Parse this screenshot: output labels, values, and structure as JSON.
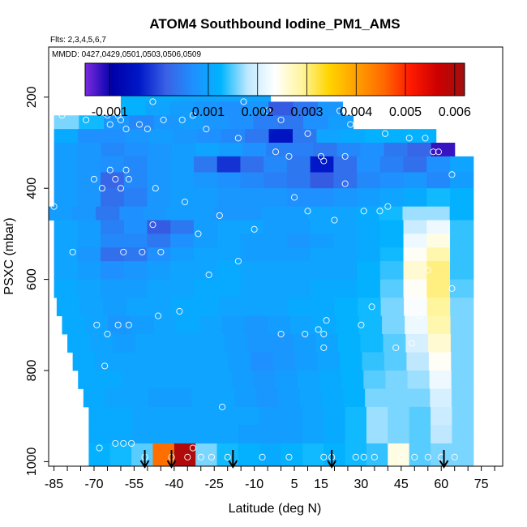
{
  "chart_data": {
    "type": "heatmap",
    "title": "ATOM4 Southbound Iodine_PM1_AMS",
    "subtitle": "Flts: 2,3,4,5,6,7",
    "legend_note": "MMDD: 0427,0429,0501,0503,0506,0509",
    "xlabel": "Latitude (deg N)",
    "ylabel": "PSXC (mbar)",
    "xlim": [
      -87,
      83
    ],
    "ylim": [
      1010,
      90
    ],
    "x_ticks": [
      -85,
      -70,
      -55,
      -40,
      -25,
      -10,
      5,
      15,
      30,
      45,
      60,
      75
    ],
    "y_ticks": [
      200,
      400,
      600,
      800,
      1000
    ],
    "colorbar": {
      "range": [
        -0.0015,
        0.0062
      ],
      "tick_values": [
        -0.001,
        0.001,
        0.002,
        0.003,
        0.004,
        0.005,
        0.006
      ],
      "tick_labels": [
        "-0.001",
        "0.001",
        "0.002",
        "0.003",
        "0.004",
        "0.005",
        "0.006"
      ],
      "colors": [
        "#7b2be0",
        "#0000a8",
        "#0018c8",
        "#3a62e6",
        "#1e90ff",
        "#00b4ff",
        "#bfe8ff",
        "#ffffff",
        "#fff59c",
        "#ffd400",
        "#ffa000",
        "#ff6a00",
        "#ff1a00",
        "#cc0000",
        "#a01010"
      ]
    },
    "flight_arrows_lat": [
      -51,
      -41,
      -18,
      19,
      61
    ],
    "strips": [
      {
        "pmin": 170,
        "pmax": 210,
        "lat0": -60,
        "lat1": -4,
        "vals": [
          0.0012,
          0.0011,
          0.001,
          0.001,
          0.001
        ]
      },
      {
        "pmin": 210,
        "pmax": 240,
        "lat0": -60,
        "lat1": 23,
        "vals": [
          0.0012,
          0.001,
          0.0009,
          0.0008,
          0.0007,
          0.0008,
          0.0001,
          0.0004,
          0.0008
        ]
      },
      {
        "pmin": 240,
        "pmax": 270,
        "lat0": -85,
        "lat1": 27,
        "vals": [
          0.0016,
          0.0013,
          0.0008,
          0.0006,
          0.0008,
          0.0009,
          0.0008,
          0.0007,
          0.0005,
          0.0004,
          0.0007,
          0.0009
        ]
      },
      {
        "pmin": 270,
        "pmax": 300,
        "lat0": -85,
        "lat1": 58,
        "vals": [
          0.0011,
          0.0007,
          0.0007,
          0.0008,
          0.0009,
          0.0008,
          0.0007,
          0.0006,
          0.0004,
          -0.0005,
          0.0004,
          0.001,
          0.0011,
          0.0012,
          0.0012,
          0.0012
        ]
      },
      {
        "pmin": 300,
        "pmax": 330,
        "lat0": -85,
        "lat1": 65,
        "vals": [
          0.0009,
          0.0008,
          0.0006,
          0.0007,
          0.0008,
          0.0009,
          0.001,
          0.0009,
          0.0007,
          0.0005,
          0.0005,
          0.0004,
          0.0006,
          0.0007,
          0.0004,
          0.0002,
          -0.0012
        ]
      },
      {
        "pmin": 330,
        "pmax": 365,
        "lat0": -85,
        "lat1": 72,
        "vals": [
          0.0009,
          0.0008,
          0.0007,
          0.0006,
          0.0008,
          0.0009,
          0.0004,
          -0.0002,
          0.0003,
          0.0006,
          0.0004,
          -0.0004,
          0.0003,
          0.0007,
          0.0005,
          0.0003,
          0.0007,
          0.001
        ]
      },
      {
        "pmin": 365,
        "pmax": 400,
        "lat0": -85,
        "lat1": 72,
        "vals": [
          0.0009,
          0.0008,
          0.0002,
          0.0006,
          0.0008,
          0.0009,
          0.0008,
          0.0007,
          0.0006,
          0.0005,
          0.0004,
          0.0001,
          0.0003,
          0.0006,
          0.0007,
          0.0008,
          0.0006,
          0.0009
        ]
      },
      {
        "pmin": 400,
        "pmax": 440,
        "lat0": -85,
        "lat1": 72,
        "vals": [
          0.0009,
          0.0008,
          0.0003,
          0.0005,
          0.0008,
          0.0009,
          0.0009,
          0.0008,
          0.0008,
          0.0008,
          0.0007,
          0.0007,
          0.0008,
          0.0009,
          0.001,
          0.0011,
          0.0013,
          0.0012
        ]
      },
      {
        "pmin": 440,
        "pmax": 470,
        "lat0": -87,
        "lat1": 72,
        "vals": [
          0.0009,
          0.0008,
          0.0004,
          0.0007,
          0.0008,
          0.0009,
          0.0009,
          0.0008,
          0.0008,
          0.0009,
          0.0009,
          0.001,
          0.001,
          0.0011,
          0.0013,
          0.0017,
          0.0017,
          0.0012
        ]
      },
      {
        "pmin": 470,
        "pmax": 500,
        "lat0": -85,
        "lat1": 72,
        "vals": [
          0.001,
          0.0009,
          0.0005,
          0.0007,
          0.0001,
          0.0004,
          0.0009,
          0.001,
          0.001,
          0.0009,
          0.0009,
          0.001,
          0.001,
          0.0011,
          0.0012,
          0.0019,
          0.0022,
          0.0014
        ]
      },
      {
        "pmin": 500,
        "pmax": 530,
        "lat0": -85,
        "lat1": 72,
        "vals": [
          0.001,
          0.0009,
          0.0006,
          0.0006,
          0.0004,
          0.0007,
          0.0009,
          0.001,
          0.0009,
          0.0009,
          0.0008,
          0.0009,
          0.001,
          0.0011,
          0.0012,
          0.0022,
          0.0025,
          0.0014
        ]
      },
      {
        "pmin": 530,
        "pmax": 560,
        "lat0": -85,
        "lat1": 72,
        "vals": [
          0.001,
          0.0008,
          0.0003,
          0.0004,
          0.0007,
          0.0009,
          0.001,
          0.001,
          0.0009,
          0.0009,
          0.0009,
          0.001,
          0.001,
          0.0011,
          0.0013,
          0.0024,
          0.0028,
          0.0014
        ]
      },
      {
        "pmin": 560,
        "pmax": 600,
        "lat0": -85,
        "lat1": 72,
        "vals": [
          0.001,
          0.0009,
          0.0007,
          0.0008,
          0.0009,
          0.001,
          0.001,
          0.0011,
          0.001,
          0.001,
          0.001,
          0.001,
          0.001,
          0.0012,
          0.0014,
          0.0026,
          0.003,
          0.0014
        ]
      },
      {
        "pmin": 600,
        "pmax": 640,
        "lat0": -85,
        "lat1": 72,
        "vals": [
          0.0011,
          0.001,
          0.0009,
          0.0009,
          0.001,
          0.001,
          0.0011,
          0.0011,
          0.001,
          0.001,
          0.001,
          0.0011,
          0.0011,
          0.0012,
          0.0015,
          0.0024,
          0.003,
          0.0015
        ]
      },
      {
        "pmin": 640,
        "pmax": 680,
        "lat0": -84,
        "lat1": 72,
        "vals": [
          0.0011,
          0.001,
          0.0009,
          0.001,
          0.001,
          0.0011,
          0.0011,
          0.001,
          0.001,
          0.001,
          0.0011,
          0.0011,
          0.0012,
          0.0013,
          0.0016,
          0.0023,
          0.0029,
          0.0016
        ]
      },
      {
        "pmin": 680,
        "pmax": 720,
        "lat0": -82,
        "lat1": 72,
        "vals": [
          0.0011,
          0.001,
          0.0008,
          0.0009,
          0.001,
          0.0011,
          0.001,
          0.0009,
          0.0008,
          0.0009,
          0.001,
          0.0011,
          0.0012,
          0.0013,
          0.0016,
          0.0022,
          0.0028,
          0.0016
        ]
      },
      {
        "pmin": 720,
        "pmax": 760,
        "lat0": -80,
        "lat1": 72,
        "vals": [
          0.0011,
          0.001,
          0.0009,
          0.001,
          0.001,
          0.001,
          0.001,
          0.0009,
          0.0008,
          0.0008,
          0.0009,
          0.001,
          0.0012,
          0.0013,
          0.0015,
          0.002,
          0.0026,
          0.0016
        ]
      },
      {
        "pmin": 760,
        "pmax": 800,
        "lat0": -78,
        "lat1": 72,
        "vals": [
          0.0011,
          0.001,
          0.001,
          0.001,
          0.001,
          0.001,
          0.001,
          0.0009,
          0.0007,
          0.0008,
          0.0009,
          0.001,
          0.0012,
          0.0014,
          0.0015,
          0.0018,
          0.0024,
          0.0016
        ]
      },
      {
        "pmin": 800,
        "pmax": 840,
        "lat0": -76,
        "lat1": 72,
        "vals": [
          0.0011,
          0.0011,
          0.001,
          0.001,
          0.001,
          0.001,
          0.001,
          0.0009,
          0.0008,
          0.0009,
          0.001,
          0.0011,
          0.0012,
          0.0015,
          0.0016,
          0.0017,
          0.0022,
          0.0016
        ]
      },
      {
        "pmin": 840,
        "pmax": 880,
        "lat0": -74,
        "lat1": 72,
        "vals": [
          0.0011,
          0.001,
          0.001,
          0.0009,
          0.0009,
          0.001,
          0.001,
          0.0009,
          0.0008,
          0.0009,
          0.001,
          0.0011,
          0.0012,
          0.0016,
          0.0016,
          0.0016,
          0.002,
          0.0016
        ]
      },
      {
        "pmin": 880,
        "pmax": 920,
        "lat0": -72,
        "lat1": 72,
        "vals": [
          0.0011,
          0.0011,
          0.001,
          0.001,
          0.001,
          0.001,
          0.001,
          0.001,
          0.0009,
          0.0009,
          0.001,
          0.0011,
          0.0013,
          0.0017,
          0.0016,
          0.0015,
          0.0019,
          0.0016
        ]
      },
      {
        "pmin": 920,
        "pmax": 960,
        "lat0": -72,
        "lat1": 72,
        "vals": [
          0.0011,
          0.0011,
          0.001,
          0.001,
          0.001,
          0.001,
          0.001,
          0.0009,
          0.0009,
          0.0009,
          0.001,
          0.0011,
          0.0013,
          0.0017,
          0.0016,
          0.0015,
          0.0018,
          0.0016
        ]
      },
      {
        "pmin": 960,
        "pmax": 1010,
        "lat0": -72,
        "lat1": 72,
        "vals": [
          0.0012,
          0.0013,
          0.0015,
          0.0045,
          0.006,
          0.0016,
          0.0013,
          0.0012,
          0.0011,
          0.0012,
          0.0013,
          0.0012,
          0.0013,
          0.0014,
          0.0025,
          0.0015,
          0.0016,
          0.0016
        ]
      }
    ],
    "points": [
      [
        -85,
        440
      ],
      [
        -82,
        240
      ],
      [
        -78,
        540
      ],
      [
        -73,
        250
      ],
      [
        -70,
        380
      ],
      [
        -69,
        700
      ],
      [
        -68,
        970
      ],
      [
        -67,
        400
      ],
      [
        -66,
        230
      ],
      [
        -66,
        790
      ],
      [
        -65,
        240
      ],
      [
        -65,
        720
      ],
      [
        -64,
        360
      ],
      [
        -64,
        260
      ],
      [
        -62,
        380
      ],
      [
        -62,
        960
      ],
      [
        -61,
        700
      ],
      [
        -61,
        240
      ],
      [
        -60,
        250
      ],
      [
        -60,
        400
      ],
      [
        -59,
        540
      ],
      [
        -59,
        960
      ],
      [
        -58,
        270
      ],
      [
        -58,
        360
      ],
      [
        -57,
        700
      ],
      [
        -57,
        380
      ],
      [
        -56,
        960
      ],
      [
        -53,
        260
      ],
      [
        -52,
        540
      ],
      [
        -51,
        990
      ],
      [
        -50,
        270
      ],
      [
        -48,
        210
      ],
      [
        -48,
        480
      ],
      [
        -47,
        400
      ],
      [
        -46,
        680
      ],
      [
        -45,
        540
      ],
      [
        -44,
        250
      ],
      [
        -41,
        990
      ],
      [
        -38,
        670
      ],
      [
        -37,
        250
      ],
      [
        -36,
        430
      ],
      [
        -35,
        990
      ],
      [
        -33,
        240
      ],
      [
        -33,
        970
      ],
      [
        -31,
        500
      ],
      [
        -30,
        990
      ],
      [
        -28,
        270
      ],
      [
        -27,
        590
      ],
      [
        -26,
        990
      ],
      [
        -23,
        460
      ],
      [
        -22,
        880
      ],
      [
        -20,
        990
      ],
      [
        -16,
        290
      ],
      [
        -16,
        560
      ],
      [
        -14,
        210
      ],
      [
        -10,
        490
      ],
      [
        -7,
        990
      ],
      [
        -5,
        230
      ],
      [
        -2,
        320
      ],
      [
        0,
        720
      ],
      [
        0,
        250
      ],
      [
        3,
        330
      ],
      [
        3,
        990
      ],
      [
        5,
        420
      ],
      [
        9,
        720
      ],
      [
        10,
        280
      ],
      [
        10,
        450
      ],
      [
        14,
        710
      ],
      [
        15,
        330
      ],
      [
        16,
        750
      ],
      [
        16,
        990
      ],
      [
        16,
        720
      ],
      [
        16,
        340
      ],
      [
        17,
        690
      ],
      [
        19,
        990
      ],
      [
        20,
        470
      ],
      [
        22,
        230
      ],
      [
        24,
        330
      ],
      [
        24,
        390
      ],
      [
        26,
        260
      ],
      [
        28,
        990
      ],
      [
        30,
        700
      ],
      [
        31,
        990
      ],
      [
        31,
        450
      ],
      [
        34,
        660
      ],
      [
        35,
        990
      ],
      [
        37,
        450
      ],
      [
        39,
        280
      ],
      [
        40,
        440
      ],
      [
        43,
        750
      ],
      [
        45,
        990
      ],
      [
        48,
        290
      ],
      [
        49,
        740
      ],
      [
        50,
        990
      ],
      [
        52,
        680
      ],
      [
        54,
        290
      ],
      [
        55,
        990
      ],
      [
        55,
        580
      ],
      [
        57,
        320
      ],
      [
        59,
        320
      ],
      [
        60,
        990
      ],
      [
        64,
        370
      ],
      [
        64,
        620
      ],
      [
        65,
        990
      ]
    ]
  }
}
